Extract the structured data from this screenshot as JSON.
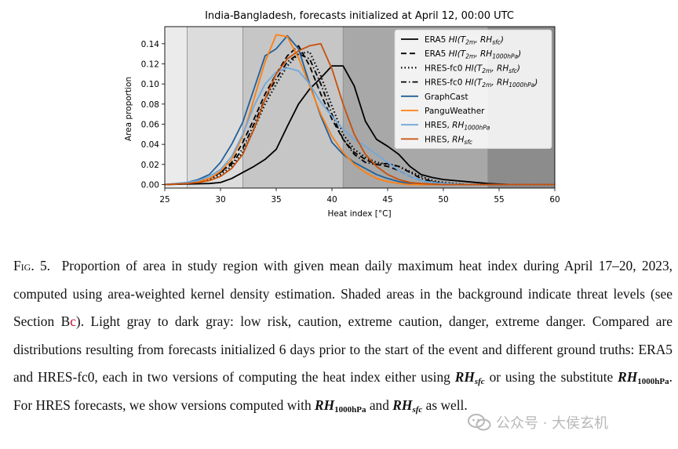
{
  "chart_data": {
    "type": "line",
    "title": "India-Bangladesh, forecasts initialized at April 12, 00:00 UTC",
    "xlabel": "Heat index [°C]",
    "ylabel": "Area proportion",
    "xlim": [
      25,
      60
    ],
    "ylim": [
      -0.0035,
      0.157
    ],
    "xticks": [
      25,
      30,
      35,
      40,
      45,
      50,
      55,
      60
    ],
    "yticks": [
      0.0,
      0.02,
      0.04,
      0.06,
      0.08,
      0.1,
      0.12,
      0.14
    ],
    "threat_levels": [
      {
        "name": "low risk",
        "from": 25,
        "to": 27,
        "color": "#ebebeb"
      },
      {
        "name": "caution",
        "from": 27,
        "to": 32,
        "color": "#dcdcdc"
      },
      {
        "name": "extreme caution",
        "from": 32,
        "to": 41,
        "color": "#c6c6c6"
      },
      {
        "name": "danger",
        "from": 41,
        "to": 54,
        "color": "#a8a8a8"
      },
      {
        "name": "extreme danger",
        "from": 54,
        "to": 60,
        "color": "#8c8c8c"
      }
    ],
    "series": [
      {
        "name": "ERA5 HI(T2m, RHsfc)",
        "legend": {
          "main": "ERA5 ",
          "math": [
            [
              "HI(T",
              ""
            ],
            [
              "2m",
              "sub"
            ],
            [
              ", RH",
              ""
            ],
            [
              "sfc",
              "sub"
            ],
            [
              ")",
              ""
            ]
          ]
        },
        "color": "#000000",
        "dash": "solid",
        "width": 1.8,
        "x": [
          25,
          27,
          29,
          30,
          31,
          32,
          33,
          34,
          35,
          36,
          37,
          38,
          39,
          40,
          41,
          42,
          43,
          44,
          45,
          46,
          47,
          48,
          49,
          50,
          52,
          54,
          56,
          60
        ],
        "y": [
          0.0,
          0.0005,
          0.001,
          0.002,
          0.006,
          0.012,
          0.018,
          0.025,
          0.035,
          0.058,
          0.08,
          0.095,
          0.106,
          0.118,
          0.118,
          0.098,
          0.063,
          0.045,
          0.038,
          0.03,
          0.018,
          0.01,
          0.007,
          0.005,
          0.003,
          0.001,
          0.0,
          0.0
        ]
      },
      {
        "name": "ERA5 HI(T2m, RH1000hPa)",
        "legend": {
          "main": "ERA5 ",
          "math": [
            [
              "HI(T",
              ""
            ],
            [
              "2m",
              "sub"
            ],
            [
              ", RH",
              ""
            ],
            [
              "1000hPa",
              "sub"
            ],
            [
              ")",
              ""
            ]
          ]
        },
        "color": "#000000",
        "dash": "7,4",
        "width": 1.8,
        "x": [
          25,
          27,
          28,
          29,
          30,
          31,
          32,
          33,
          34,
          35,
          36,
          37,
          38,
          39,
          40,
          41,
          42,
          43,
          44,
          45,
          46,
          47,
          48,
          49,
          50,
          52,
          55,
          60
        ],
        "y": [
          0.0,
          0.001,
          0.003,
          0.006,
          0.012,
          0.022,
          0.042,
          0.065,
          0.09,
          0.11,
          0.128,
          0.138,
          0.118,
          0.09,
          0.065,
          0.045,
          0.032,
          0.025,
          0.02,
          0.018,
          0.014,
          0.008,
          0.004,
          0.002,
          0.001,
          0.0,
          0.0,
          0.0
        ]
      },
      {
        "name": "HRES-fc0 HI(T2m, RHsfc)",
        "legend": {
          "main": "HRES-fc0 ",
          "math": [
            [
              "HI(T",
              ""
            ],
            [
              "2m",
              "sub"
            ],
            [
              ", RH",
              ""
            ],
            [
              "sfc",
              "sub"
            ],
            [
              ")",
              ""
            ]
          ]
        },
        "color": "#000000",
        "dash": "1.5,3",
        "width": 2.2,
        "x": [
          25,
          27,
          28,
          29,
          30,
          31,
          32,
          33,
          34,
          35,
          36,
          37,
          38,
          39,
          40,
          41,
          42,
          43,
          44,
          45,
          46,
          47,
          48,
          49,
          50,
          52,
          55,
          60
        ],
        "y": [
          0.0,
          0.001,
          0.002,
          0.005,
          0.01,
          0.018,
          0.032,
          0.055,
          0.08,
          0.1,
          0.118,
          0.13,
          0.132,
          0.108,
          0.078,
          0.05,
          0.035,
          0.027,
          0.022,
          0.02,
          0.018,
          0.013,
          0.008,
          0.004,
          0.002,
          0.0,
          0.0,
          0.0
        ]
      },
      {
        "name": "HRES-fc0 HI(T2m, RH1000hPa)",
        "legend": {
          "main": "HRES-fc0 ",
          "math": [
            [
              "HI(T",
              ""
            ],
            [
              "2m",
              "sub"
            ],
            [
              ", RH",
              ""
            ],
            [
              "1000hPa",
              "sub"
            ],
            [
              ")",
              ""
            ]
          ]
        },
        "color": "#000000",
        "dash": "7,3,1.5,3",
        "width": 1.8,
        "x": [
          25,
          27,
          28,
          29,
          30,
          31,
          32,
          33,
          34,
          35,
          36,
          37,
          38,
          39,
          40,
          41,
          42,
          43,
          44,
          45,
          46,
          47,
          48,
          49,
          50,
          52,
          55,
          60
        ],
        "y": [
          0.0,
          0.001,
          0.003,
          0.006,
          0.012,
          0.02,
          0.036,
          0.06,
          0.085,
          0.105,
          0.122,
          0.13,
          0.125,
          0.1,
          0.07,
          0.045,
          0.03,
          0.022,
          0.02,
          0.021,
          0.018,
          0.012,
          0.006,
          0.003,
          0.001,
          0.0,
          0.0,
          0.0
        ]
      },
      {
        "name": "GraphCast",
        "legend": {
          "main": "GraphCast",
          "math": []
        },
        "color": "#1f5f99",
        "dash": "solid",
        "width": 1.8,
        "x": [
          25,
          27,
          28,
          29,
          30,
          31,
          32,
          33,
          34,
          35,
          36,
          37,
          38,
          39,
          40,
          41,
          42,
          43,
          44,
          45,
          46,
          47,
          48,
          50,
          52,
          55,
          60
        ],
        "y": [
          0.0,
          0.002,
          0.005,
          0.01,
          0.022,
          0.04,
          0.062,
          0.095,
          0.128,
          0.135,
          0.148,
          0.135,
          0.1,
          0.068,
          0.042,
          0.03,
          0.022,
          0.016,
          0.01,
          0.006,
          0.003,
          0.001,
          0.0,
          0.0,
          0.0,
          0.0,
          0.0
        ]
      },
      {
        "name": "PanguWeather",
        "legend": {
          "main": "PanguWeather",
          "math": []
        },
        "color": "#ff7f0e",
        "dash": "solid",
        "width": 1.8,
        "x": [
          25,
          27,
          28,
          29,
          30,
          31,
          32,
          33,
          34,
          35,
          36,
          37,
          38,
          39,
          40,
          41,
          42,
          43,
          44,
          45,
          46,
          47,
          48,
          50,
          52,
          55,
          60
        ],
        "y": [
          0.0,
          0.001,
          0.003,
          0.006,
          0.013,
          0.025,
          0.048,
          0.085,
          0.122,
          0.149,
          0.147,
          0.126,
          0.098,
          0.07,
          0.048,
          0.032,
          0.02,
          0.012,
          0.006,
          0.003,
          0.001,
          0.0,
          0.0,
          0.0,
          0.0,
          0.0,
          0.0
        ]
      },
      {
        "name": "HRES, RH1000hPa",
        "legend": {
          "main": "HRES, ",
          "math": [
            [
              "RH",
              ""
            ],
            [
              "1000hPa",
              "sub"
            ]
          ]
        },
        "color": "#6fa8dc",
        "dash": "solid",
        "width": 1.8,
        "x": [
          25,
          27,
          28,
          29,
          30,
          31,
          32,
          33,
          34,
          35,
          36,
          37,
          38,
          39,
          40,
          41,
          42,
          43,
          44,
          45,
          46,
          47,
          48,
          49,
          50,
          52,
          55,
          60
        ],
        "y": [
          0.0,
          0.002,
          0.004,
          0.008,
          0.015,
          0.028,
          0.05,
          0.078,
          0.1,
          0.112,
          0.116,
          0.113,
          0.1,
          0.082,
          0.068,
          0.055,
          0.045,
          0.038,
          0.03,
          0.022,
          0.014,
          0.008,
          0.004,
          0.002,
          0.001,
          0.0,
          0.0,
          0.0
        ]
      },
      {
        "name": "HRES, RHsfc",
        "legend": {
          "main": "HRES, ",
          "math": [
            [
              "RH",
              ""
            ],
            [
              "sfc",
              "sub"
            ]
          ]
        },
        "color": "#c8500a",
        "dash": "solid",
        "width": 1.8,
        "x": [
          25,
          27,
          28,
          29,
          30,
          31,
          32,
          33,
          34,
          35,
          36,
          37,
          38,
          39,
          40,
          41,
          42,
          43,
          44,
          45,
          46,
          47,
          48,
          50,
          52,
          55,
          60
        ],
        "y": [
          0.0,
          0.001,
          0.002,
          0.004,
          0.008,
          0.016,
          0.03,
          0.055,
          0.085,
          0.11,
          0.125,
          0.133,
          0.138,
          0.14,
          0.115,
          0.08,
          0.05,
          0.03,
          0.018,
          0.01,
          0.005,
          0.002,
          0.001,
          0.0,
          0.0,
          0.0,
          0.0
        ]
      }
    ]
  },
  "caption": {
    "label": "Fig. 5.",
    "parts": [
      "Proportion of area in study region with given mean daily maximum heat index during April 17–20, 2023, computed using area-weighted kernel density estimation. Shaded areas in the background indicate threat levels (see Section B",
      "c",
      "). Light gray to dark gray: low risk, caution, extreme caution, danger, extreme danger. Compared are distributions resulting from forecasts initialized 6 days prior to the start of the event and different ground truths: ERA5 and HRES-fc0, each in two versions of computing the heat index either using ",
      "RH",
      "sfc",
      " or using the substitute ",
      "RH",
      "1000hPa",
      ". For HRES forecasts, we show versions computed with ",
      "RH",
      "1000hPa",
      " and ",
      "RH",
      "sfc",
      " as well."
    ]
  },
  "watermark": {
    "text": "公众号 · 大侯玄机"
  }
}
